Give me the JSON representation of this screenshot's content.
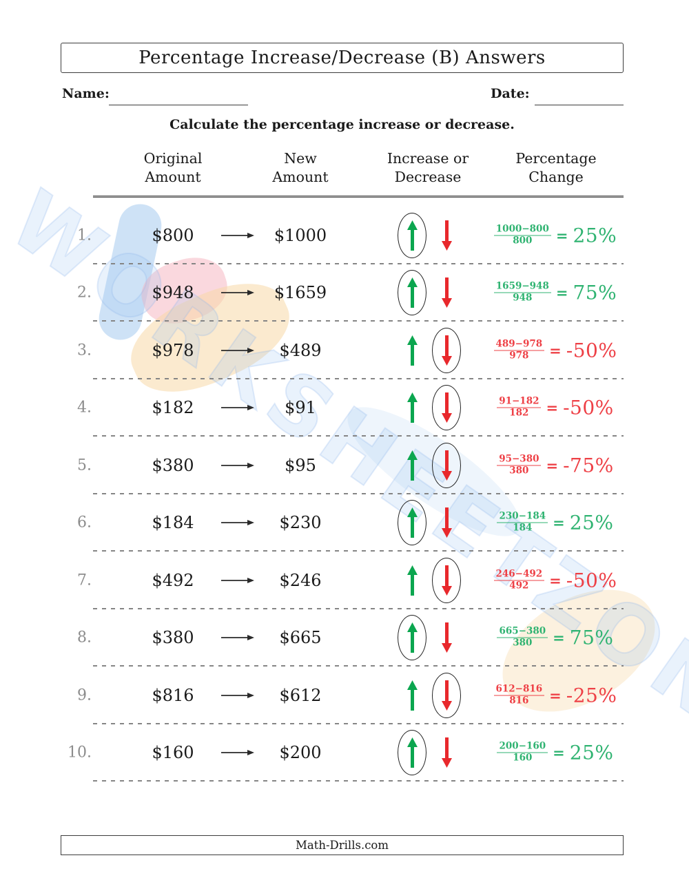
{
  "header": {
    "title": "Percentage Increase/Decrease (B) Answers",
    "name_label": "Name:",
    "date_label": "Date:",
    "instruction": "Calculate the percentage increase or decrease."
  },
  "watermark": {
    "text": "WORKSHEETZONE"
  },
  "table": {
    "columns": [
      {
        "line1": "Original",
        "line2": "Amount"
      },
      {
        "line1": "New",
        "line2": "Amount"
      },
      {
        "line1": "Increase or",
        "line2": "Decrease"
      },
      {
        "line1": "Percentage",
        "line2": "Change"
      }
    ],
    "rows": [
      {
        "num": "1.",
        "original": "$800",
        "new_amount": "$1000",
        "circled": "increase",
        "frac_num": "1000−800",
        "frac_den": "800",
        "equals": "=",
        "result": "25%",
        "sign": "positive"
      },
      {
        "num": "2.",
        "original": "$948",
        "new_amount": "$1659",
        "circled": "increase",
        "frac_num": "1659−948",
        "frac_den": "948",
        "equals": "=",
        "result": "75%",
        "sign": "positive"
      },
      {
        "num": "3.",
        "original": "$978",
        "new_amount": "$489",
        "circled": "decrease",
        "frac_num": "489−978",
        "frac_den": "978",
        "equals": "=",
        "result": "-50%",
        "sign": "negative"
      },
      {
        "num": "4.",
        "original": "$182",
        "new_amount": "$91",
        "circled": "decrease",
        "frac_num": "91−182",
        "frac_den": "182",
        "equals": "=",
        "result": "-50%",
        "sign": "negative"
      },
      {
        "num": "5.",
        "original": "$380",
        "new_amount": "$95",
        "circled": "decrease",
        "frac_num": "95−380",
        "frac_den": "380",
        "equals": "=",
        "result": "-75%",
        "sign": "negative"
      },
      {
        "num": "6.",
        "original": "$184",
        "new_amount": "$230",
        "circled": "increase",
        "frac_num": "230−184",
        "frac_den": "184",
        "equals": "=",
        "result": "25%",
        "sign": "positive"
      },
      {
        "num": "7.",
        "original": "$492",
        "new_amount": "$246",
        "circled": "decrease",
        "frac_num": "246−492",
        "frac_den": "492",
        "equals": "=",
        "result": "-50%",
        "sign": "negative"
      },
      {
        "num": "8.",
        "original": "$380",
        "new_amount": "$665",
        "circled": "increase",
        "frac_num": "665−380",
        "frac_den": "380",
        "equals": "=",
        "result": "75%",
        "sign": "positive"
      },
      {
        "num": "9.",
        "original": "$816",
        "new_amount": "$612",
        "circled": "decrease",
        "frac_num": "612−816",
        "frac_den": "816",
        "equals": "=",
        "result": "-25%",
        "sign": "negative"
      },
      {
        "num": "10.",
        "original": "$160",
        "new_amount": "$200",
        "circled": "increase",
        "frac_num": "200−160",
        "frac_den": "160",
        "equals": "=",
        "result": "25%",
        "sign": "positive"
      }
    ]
  },
  "footer": {
    "text": "Math-Drills.com"
  },
  "colors": {
    "green_arrow": "#0ba64f",
    "red_arrow": "#e8282c",
    "green_text": "#2fb371",
    "red_text": "#ee4046"
  }
}
